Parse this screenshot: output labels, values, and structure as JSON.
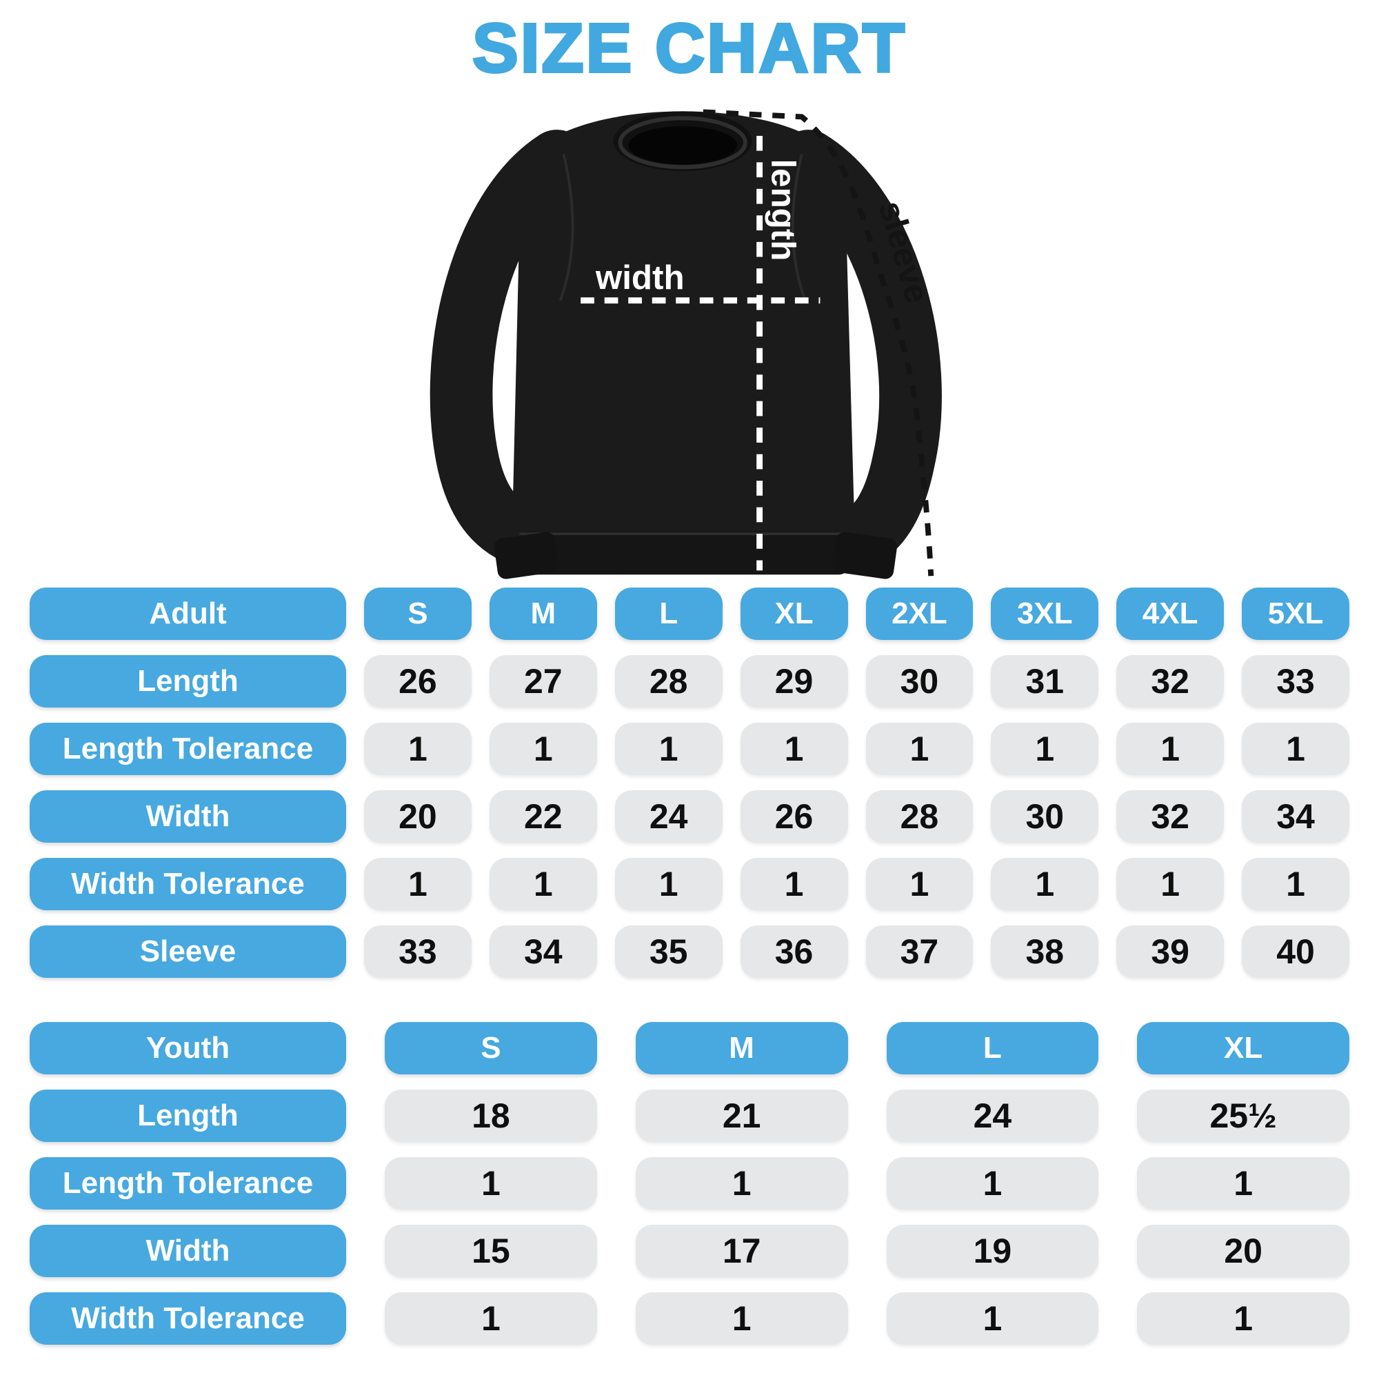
{
  "title": "SIZE CHART",
  "colors": {
    "accent_blue": "#47a9e0",
    "title_blue": "#41a8e0",
    "cell_gray": "#e6e7e9",
    "value_text": "#0f0f0f",
    "garment_black": "#1b1b1b",
    "measure_line_white": "#ffffff",
    "measure_line_black": "#141414"
  },
  "diagram": {
    "garment": "crewneck-sweatshirt",
    "length_label": "length",
    "width_label": "width",
    "sleeve_label": "sleeve"
  },
  "chart_data": [
    {
      "type": "table",
      "name": "adult",
      "columns": [
        "Adult",
        "S",
        "M",
        "L",
        "XL",
        "2XL",
        "3XL",
        "4XL",
        "5XL"
      ],
      "rows": [
        [
          "Length",
          "26",
          "27",
          "28",
          "29",
          "30",
          "31",
          "32",
          "33"
        ],
        [
          "Length Tolerance",
          "1",
          "1",
          "1",
          "1",
          "1",
          "1",
          "1",
          "1"
        ],
        [
          "Width",
          "20",
          "22",
          "24",
          "26",
          "28",
          "30",
          "32",
          "34"
        ],
        [
          "Width Tolerance",
          "1",
          "1",
          "1",
          "1",
          "1",
          "1",
          "1",
          "1"
        ],
        [
          "Sleeve",
          "33",
          "34",
          "35",
          "36",
          "37",
          "38",
          "39",
          "40"
        ]
      ]
    },
    {
      "type": "table",
      "name": "youth",
      "columns": [
        "Youth",
        "S",
        "M",
        "L",
        "XL"
      ],
      "rows": [
        [
          "Length",
          "18",
          "21",
          "24",
          "25½"
        ],
        [
          "Length Tolerance",
          "1",
          "1",
          "1",
          "1"
        ],
        [
          "Width",
          "15",
          "17",
          "19",
          "20"
        ],
        [
          "Width Tolerance",
          "1",
          "1",
          "1",
          "1"
        ]
      ]
    }
  ]
}
